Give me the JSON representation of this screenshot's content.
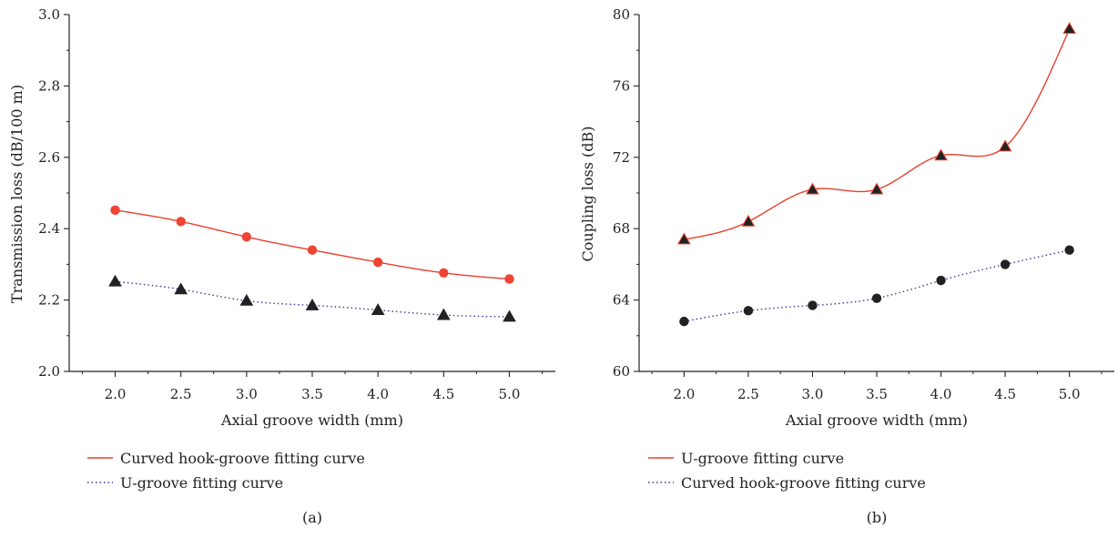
{
  "chart_data": [
    {
      "type": "scatter",
      "panel_label": "(a)",
      "xlabel": "Axial groove width (mm)",
      "ylabel": "Transmission loss (dB/100 m)",
      "xlim": [
        1.65,
        5.35
      ],
      "ylim": [
        2.0,
        3.0
      ],
      "x_ticks": [
        "2.0",
        "2.5",
        "3.0",
        "3.5",
        "4.0",
        "4.5",
        "5.0"
      ],
      "y_ticks": [
        "2.0",
        "2.2",
        "2.4",
        "2.6",
        "2.8",
        "3.0"
      ],
      "x": [
        2.0,
        2.5,
        3.0,
        3.5,
        4.0,
        4.5,
        5.0
      ],
      "series": [
        {
          "name": "Curved hook-groove fitting curve",
          "values": [
            2.452,
            2.42,
            2.377,
            2.34,
            2.306,
            2.276,
            2.259
          ],
          "marker": "circle",
          "marker_color": "#ee4433",
          "line_style": "solid",
          "line_color": "#e8402e"
        },
        {
          "name": "U-groove fitting curve",
          "values": [
            2.252,
            2.23,
            2.198,
            2.185,
            2.172,
            2.158,
            2.153
          ],
          "marker": "triangle",
          "marker_color": "#222222",
          "line_style": "dotted",
          "line_color": "#3a3a9a"
        }
      ],
      "legend_position": "below"
    },
    {
      "type": "scatter",
      "panel_label": "(b)",
      "xlabel": "Axial groove width (mm)",
      "ylabel": "Coupling loss (dB)",
      "xlim": [
        1.65,
        5.35
      ],
      "ylim": [
        60,
        80
      ],
      "x_ticks": [
        "2.0",
        "2.5",
        "3.0",
        "3.5",
        "4.0",
        "4.5",
        "5.0"
      ],
      "y_ticks": [
        "60",
        "64",
        "68",
        "72",
        "76",
        "80"
      ],
      "x": [
        2.0,
        2.5,
        3.0,
        3.5,
        4.0,
        4.5,
        5.0
      ],
      "series": [
        {
          "name": "U-groove fitting curve",
          "values": [
            67.4,
            68.4,
            70.2,
            70.2,
            72.1,
            72.6,
            79.2
          ],
          "marker": "triangle",
          "marker_color": "#222222",
          "marker_edge": "#e8402e",
          "line_style": "solid",
          "line_color": "#e8402e"
        },
        {
          "name": "Curved hook-groove fitting curve",
          "values": [
            62.8,
            63.4,
            63.7,
            64.1,
            65.1,
            66.0,
            66.8
          ],
          "marker": "circle",
          "marker_color": "#222222",
          "line_style": "dotted",
          "line_color": "#3a3a9a"
        }
      ],
      "legend_position": "below"
    }
  ]
}
